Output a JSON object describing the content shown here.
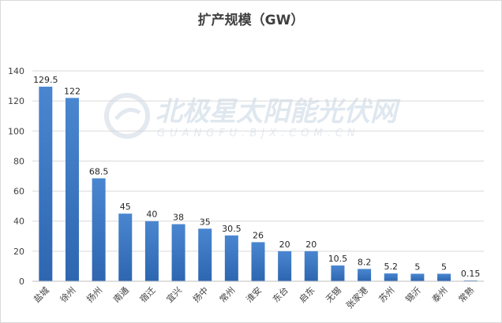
{
  "chart_data": {
    "type": "bar",
    "title": "扩产规模（GW）",
    "categories": [
      "盐城",
      "徐州",
      "扬州",
      "南通",
      "宿迁",
      "宜兴",
      "扬中",
      "常州",
      "淮安",
      "东台",
      "启东",
      "无锡",
      "张家港",
      "苏州",
      "锡沂",
      "泰州",
      "常熟"
    ],
    "values": [
      129.5,
      122,
      68.5,
      45,
      40,
      38,
      35,
      30.5,
      26,
      20,
      20,
      10.5,
      8.2,
      5.2,
      5,
      5,
      0.15
    ],
    "value_labels": [
      "129.5",
      "122",
      "68.5",
      "45",
      "40",
      "38",
      "35",
      "30.5",
      "26",
      "20",
      "20",
      "10.5",
      "8.2",
      "5.2",
      "5",
      "5",
      "0.15"
    ],
    "ylim": [
      0,
      140
    ],
    "yticks": [
      "0",
      "20",
      "40",
      "60",
      "80",
      "100",
      "120",
      "140"
    ],
    "grid": true,
    "bar_color_top": "#4a86d0",
    "bar_color_bottom": "#2e66b0"
  },
  "watermark": {
    "main": "北极星太阳能光伏网",
    "sub": "GUANGFU.BJX.COM.CN"
  }
}
